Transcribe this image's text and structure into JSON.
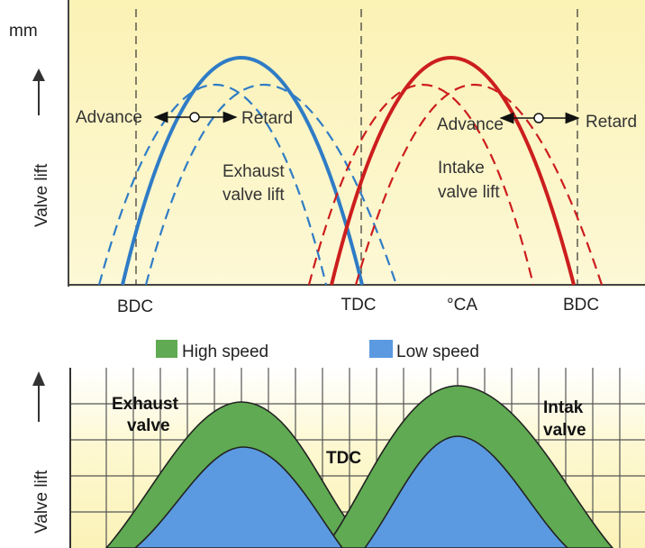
{
  "top": {
    "unit": "mm",
    "y_label": "Valve lift",
    "x_labels": {
      "bdc_left": "BDC",
      "tdc": "TDC",
      "ca": "°CA",
      "bdc_right": "BDC"
    },
    "exhaust": {
      "advance": "Advance",
      "retard": "Retard",
      "line1": "Exhaust",
      "line2": "valve lift"
    },
    "intake": {
      "advance": "Advance",
      "retard": "Retard",
      "line1": "Intake",
      "line2": "valve lift"
    },
    "colors": {
      "background": "#fbf4bd",
      "exhaust": "#2f7cc6",
      "intake": "#cc1e1e"
    }
  },
  "bottom": {
    "legend": {
      "high": "High speed",
      "low": "Low speed"
    },
    "y_label": "Valve lift",
    "labels": {
      "exhaust1": "Exhaust",
      "exhaust2": "valve",
      "tdc": "TDC",
      "intake1": "Intak",
      "intake2": "valve"
    },
    "colors": {
      "high": "#5faa52",
      "low": "#5b9ae0",
      "background": "#fbf4bd"
    }
  }
}
